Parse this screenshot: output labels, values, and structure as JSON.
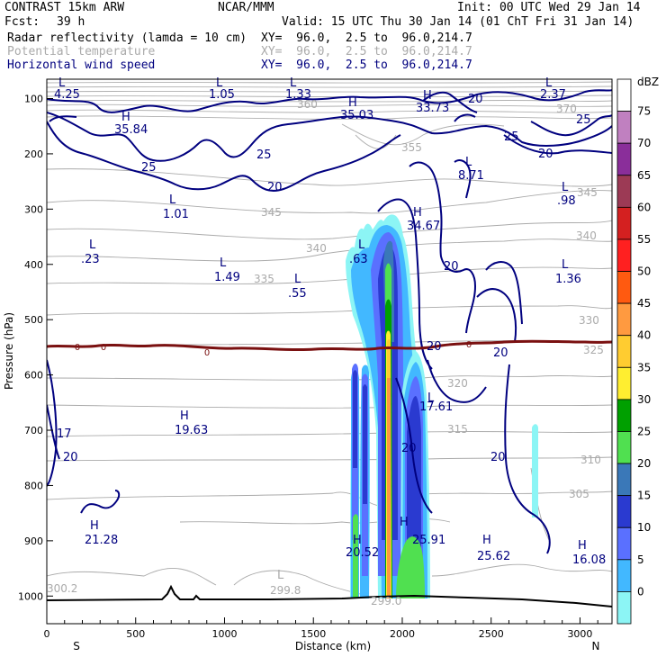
{
  "header": {
    "title": "CONTRAST 15km ARW",
    "center": "NCAR/MMM",
    "init": "Init: 00 UTC Wed 29 Jan 14",
    "fcst_label": "Fcst:",
    "fcst_value": "39 h",
    "valid": "Valid: 15 UTC Thu 30 Jan 14 (01 ChT Fri 31 Jan 14)"
  },
  "fields": [
    {
      "name": "Radar reflectivity (lamda = 10 cm)",
      "xy": "XY=  96.0,  2.5 to  96.0,214.7",
      "color": "#000000"
    },
    {
      "name": "Potential temperature",
      "xy": "XY=  96.0,  2.5 to  96.0,214.7",
      "color": "#aaaaaa"
    },
    {
      "name": "Horizontal wind speed",
      "xy": "XY=  96.0,  2.5 to  96.0,214.7",
      "color": "#00007f"
    }
  ],
  "chart_data": {
    "type": "cross-section",
    "ylabel": "Pressure (hPa)",
    "xlabel": "Distance (km)",
    "x_range": [
      0,
      3180
    ],
    "y_range": [
      1050,
      65
    ],
    "x_ticks": [
      0,
      500,
      1000,
      1500,
      2000,
      2500,
      3000
    ],
    "y_ticks": [
      100,
      200,
      300,
      400,
      500,
      600,
      700,
      800,
      900,
      1000
    ],
    "x_ends": {
      "left": "S",
      "right": "N"
    },
    "colorbar": {
      "unit": "dBZ",
      "levels": [
        75,
        70,
        65,
        60,
        55,
        50,
        45,
        40,
        35,
        30,
        25,
        20,
        15,
        10,
        5,
        0
      ],
      "colors": [
        "#ffffff",
        "#c080c0",
        "#8a2e9a",
        "#9c3a55",
        "#d42020",
        "#ff2020",
        "#ff5a10",
        "#ff9a40",
        "#ffcc30",
        "#ffee30",
        "#00a000",
        "#50e050",
        "#3a78b8",
        "#2a3ad0",
        "#5a70ff",
        "#42b8ff",
        "#8cf5f5"
      ]
    },
    "reflectivity_columns": [
      {
        "x_km": 1730,
        "x_width_km": 50,
        "top_hpa": 620,
        "bottom_hpa": 1000,
        "max_dbz": 20
      },
      {
        "x_km": 1780,
        "x_width_km": 40,
        "top_hpa": 620,
        "bottom_hpa": 1000,
        "max_dbz": 15
      },
      {
        "x_km": 1905,
        "x_width_km": 40,
        "top_hpa": 280,
        "bottom_hpa": 1000,
        "max_dbz": 40
      },
      {
        "x_km": 1920,
        "x_width_km": 60,
        "top_hpa": 250,
        "bottom_hpa": 1000,
        "max_dbz": 15
      },
      {
        "x_km": 2065,
        "x_width_km": 80,
        "top_hpa": 600,
        "bottom_hpa": 1000,
        "max_dbz": 20
      },
      {
        "x_km": 2750,
        "x_width_km": 25,
        "top_hpa": 700,
        "bottom_hpa": 820,
        "max_dbz": 5
      }
    ],
    "freezing_level_hpa": 545,
    "freezing_labels": [
      "0",
      "0",
      "0",
      "0"
    ],
    "theta_labels": [
      "360",
      "370",
      "355",
      "345",
      "345",
      "340",
      "340",
      "335",
      "330",
      "325",
      "320",
      "315",
      "310",
      "305",
      "300.2",
      "299.8",
      "299.0"
    ],
    "wind_labels": [
      "25",
      "25",
      "20",
      "20",
      "20",
      "25",
      "25",
      "20",
      "20",
      "20",
      "20",
      "17",
      "20",
      "20"
    ],
    "extrema": [
      {
        "type": "H",
        "value": "35.84",
        "color": "#00007f"
      },
      {
        "type": "H",
        "value": "35.03",
        "color": "#00007f"
      },
      {
        "type": "H",
        "value": "33.73",
        "color": "#00007f"
      },
      {
        "type": "L",
        "value": "4.25",
        "color": "#00007f"
      },
      {
        "type": "L",
        "value": "1.05",
        "color": "#00007f"
      },
      {
        "type": "L",
        "value": "1.33",
        "color": "#00007f"
      },
      {
        "type": "L",
        "value": "2.37",
        "color": "#00007f"
      },
      {
        "type": "L",
        "value": "8.71",
        "color": "#00007f"
      },
      {
        "type": "L",
        "value": "1.01",
        "color": "#00007f"
      },
      {
        "type": "L",
        "value": ".98",
        "color": "#00007f"
      },
      {
        "type": "H",
        "value": "34.67",
        "color": "#00007f"
      },
      {
        "type": "L",
        "value": ".23",
        "color": "#00007f"
      },
      {
        "type": "L",
        "value": "1.49",
        "color": "#00007f"
      },
      {
        "type": "L",
        "value": ".55",
        "color": "#00007f"
      },
      {
        "type": "L",
        "value": ".63",
        "color": "#00007f"
      },
      {
        "type": "L",
        "value": "1.36",
        "color": "#00007f"
      },
      {
        "type": "H",
        "value": "19.63",
        "color": "#00007f"
      },
      {
        "type": "L",
        "value": "17.61",
        "color": "#00007f"
      },
      {
        "type": "H",
        "value": "21.28",
        "color": "#00007f"
      },
      {
        "type": "H",
        "value": "20.52",
        "color": "#00007f"
      },
      {
        "type": "H",
        "value": "25.91",
        "color": "#00007f"
      },
      {
        "type": "H",
        "value": "25.62",
        "color": "#00007f"
      },
      {
        "type": "H",
        "value": "16.08",
        "color": "#00007f"
      },
      {
        "type": "L",
        "value": "299.8",
        "color": "#aaaaaa"
      }
    ]
  }
}
